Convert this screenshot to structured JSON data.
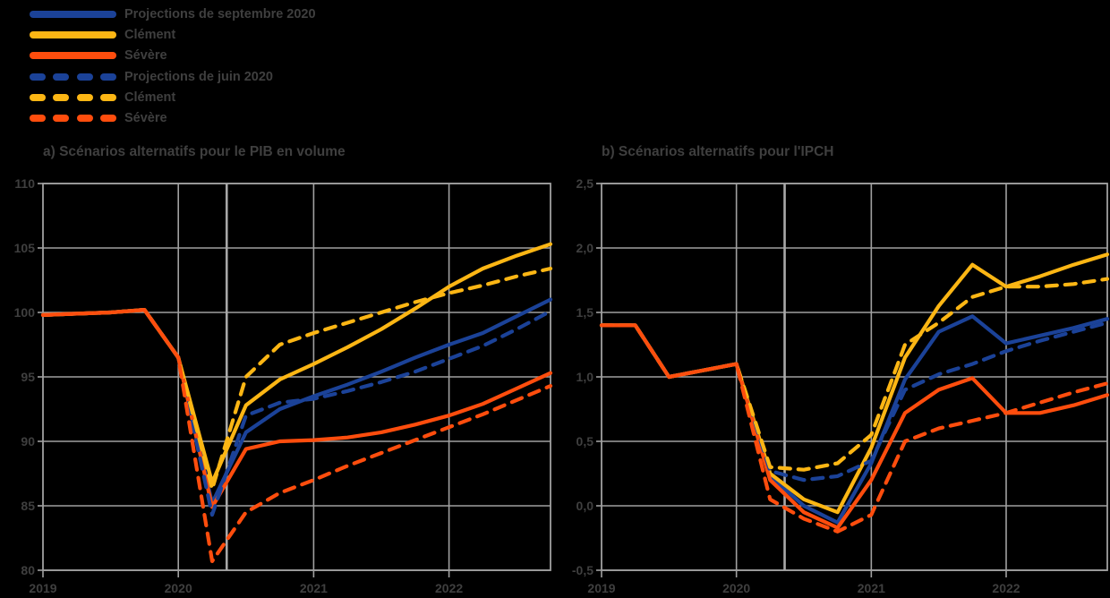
{
  "colors": {
    "blue": "#1b4298",
    "yellow": "#fcb614",
    "orange": "#ff4d0d",
    "grid": "#a0a0a0",
    "divider": "#a8a8a8",
    "text": "#3f3f3f",
    "background": "#000000"
  },
  "legend": {
    "items": [
      {
        "label": "Projections de septembre 2020",
        "color": "blue",
        "style": "solid"
      },
      {
        "label": "Clément",
        "color": "yellow",
        "style": "solid"
      },
      {
        "label": "Sévère",
        "color": "orange",
        "style": "solid"
      },
      {
        "label": "Projections de juin 2020",
        "color": "blue",
        "style": "dashed"
      },
      {
        "label": "Clément",
        "color": "yellow",
        "style": "dashed"
      },
      {
        "label": "Sévère",
        "color": "orange",
        "style": "dashed"
      }
    ]
  },
  "chart_data": [
    {
      "type": "line",
      "panel": "a",
      "title": "a) Scénarios alternatifs pour le PIB en volume",
      "x": [
        "2019Q1",
        "2019Q2",
        "2019Q3",
        "2019Q4",
        "2020Q1",
        "2020Q2",
        "2020Q3",
        "2020Q4",
        "2021Q1",
        "2021Q2",
        "2021Q3",
        "2021Q4",
        "2022Q1",
        "2022Q2",
        "2022Q3",
        "2022Q4"
      ],
      "x_ticks": [
        {
          "i": 0,
          "label": "2019"
        },
        {
          "i": 4,
          "label": "2020"
        },
        {
          "i": 8,
          "label": "2021"
        },
        {
          "i": 12,
          "label": "2022"
        }
      ],
      "ylim": [
        80,
        110
      ],
      "y_ticks": [
        {
          "v": 110,
          "label": "110"
        },
        {
          "v": 105,
          "label": "105"
        },
        {
          "v": 100,
          "label": "100"
        },
        {
          "v": 95,
          "label": "95"
        },
        {
          "v": 90,
          "label": "90"
        },
        {
          "v": 85,
          "label": "85"
        },
        {
          "v": 80,
          "label": "80"
        }
      ],
      "divider_index": 5.43,
      "grid": true,
      "legend_position": "top-left-of-page",
      "series": [
        {
          "name": "Projections de septembre 2020 (central)",
          "color": "blue",
          "dash": false,
          "values": [
            99.8,
            99.9,
            100.0,
            100.2,
            96.5,
            85.2,
            90.7,
            92.5,
            93.5,
            94.4,
            95.4,
            96.5,
            97.5,
            98.4,
            99.7,
            101.0
          ]
        },
        {
          "name": "Clément (septembre 2020)",
          "color": "yellow",
          "dash": false,
          "values": [
            99.8,
            99.9,
            100.0,
            100.2,
            96.5,
            86.8,
            92.8,
            94.8,
            96.0,
            97.3,
            98.7,
            100.3,
            102.0,
            103.4,
            104.4,
            105.3
          ]
        },
        {
          "name": "Sévère (septembre 2020)",
          "color": "orange",
          "dash": false,
          "values": [
            99.8,
            99.9,
            100.0,
            100.2,
            96.5,
            84.9,
            89.4,
            90.0,
            90.1,
            90.3,
            90.7,
            91.3,
            92.0,
            92.9,
            94.1,
            95.3
          ]
        },
        {
          "name": "Projections de juin 2020 (central)",
          "color": "blue",
          "dash": true,
          "values": [
            99.8,
            99.9,
            100.0,
            100.2,
            96.5,
            84.3,
            92.0,
            93.0,
            93.3,
            93.9,
            94.6,
            95.4,
            96.4,
            97.4,
            98.7,
            100.1
          ]
        },
        {
          "name": "Clément (juin 2020)",
          "color": "yellow",
          "dash": true,
          "values": [
            99.8,
            99.9,
            100.0,
            100.2,
            96.5,
            86.3,
            95.0,
            97.5,
            98.4,
            99.2,
            100.0,
            100.8,
            101.5,
            102.1,
            102.8,
            103.4
          ]
        },
        {
          "name": "Sévère (juin 2020)",
          "color": "orange",
          "dash": true,
          "values": [
            99.8,
            99.9,
            100.0,
            100.2,
            96.5,
            80.7,
            84.5,
            86.0,
            87.0,
            88.1,
            89.1,
            90.1,
            91.1,
            92.1,
            93.2,
            94.3
          ]
        }
      ]
    },
    {
      "type": "line",
      "panel": "b",
      "title": "b) Scénarios alternatifs pour l'IPCH",
      "x": [
        "2019Q1",
        "2019Q2",
        "2019Q3",
        "2019Q4",
        "2020Q1",
        "2020Q2",
        "2020Q3",
        "2020Q4",
        "2021Q1",
        "2021Q2",
        "2021Q3",
        "2021Q4",
        "2022Q1",
        "2022Q2",
        "2022Q3",
        "2022Q4"
      ],
      "x_ticks": [
        {
          "i": 0,
          "label": "2019"
        },
        {
          "i": 4,
          "label": "2020"
        },
        {
          "i": 8,
          "label": "2021"
        },
        {
          "i": 12,
          "label": "2022"
        }
      ],
      "ylim": [
        -0.5,
        2.5
      ],
      "y_ticks": [
        {
          "v": 2.5,
          "label": "2,5"
        },
        {
          "v": 2.0,
          "label": "2,0"
        },
        {
          "v": 1.5,
          "label": "1,5"
        },
        {
          "v": 1.0,
          "label": "1,0"
        },
        {
          "v": 0.5,
          "label": "0,5"
        },
        {
          "v": 0.0,
          "label": "0,0"
        },
        {
          "v": -0.5,
          "label": "-0,5"
        }
      ],
      "divider_index": 5.43,
      "grid": true,
      "legend_position": "top-left-of-page",
      "series": [
        {
          "name": "Projections de septembre 2020 (central)",
          "color": "blue",
          "dash": false,
          "values": [
            1.4,
            1.4,
            1.0,
            1.05,
            1.1,
            0.23,
            0.0,
            -0.13,
            0.33,
            0.98,
            1.35,
            1.47,
            1.26,
            1.32,
            1.38,
            1.45
          ]
        },
        {
          "name": "Clément (septembre 2020)",
          "color": "yellow",
          "dash": false,
          "values": [
            1.4,
            1.4,
            1.0,
            1.05,
            1.1,
            0.25,
            0.05,
            -0.05,
            0.45,
            1.15,
            1.55,
            1.87,
            1.7,
            1.78,
            1.87,
            1.95
          ]
        },
        {
          "name": "Sévère (septembre 2020)",
          "color": "orange",
          "dash": false,
          "values": [
            1.4,
            1.4,
            1.0,
            1.05,
            1.1,
            0.2,
            -0.05,
            -0.17,
            0.2,
            0.72,
            0.9,
            0.99,
            0.72,
            0.72,
            0.78,
            0.86
          ]
        },
        {
          "name": "Projections de juin 2020 (central)",
          "color": "blue",
          "dash": true,
          "values": [
            1.4,
            1.4,
            1.0,
            1.05,
            1.1,
            0.27,
            0.2,
            0.23,
            0.35,
            0.9,
            1.02,
            1.1,
            1.2,
            1.28,
            1.35,
            1.42
          ]
        },
        {
          "name": "Clément (juin 2020)",
          "color": "yellow",
          "dash": true,
          "values": [
            1.4,
            1.4,
            1.0,
            1.05,
            1.1,
            0.3,
            0.28,
            0.33,
            0.55,
            1.25,
            1.42,
            1.62,
            1.7,
            1.7,
            1.72,
            1.76
          ]
        },
        {
          "name": "Sévère (juin 2020)",
          "color": "orange",
          "dash": true,
          "values": [
            1.4,
            1.4,
            1.0,
            1.05,
            1.1,
            0.05,
            -0.1,
            -0.2,
            -0.07,
            0.5,
            0.6,
            0.66,
            0.72,
            0.8,
            0.88,
            0.95
          ]
        }
      ]
    }
  ]
}
